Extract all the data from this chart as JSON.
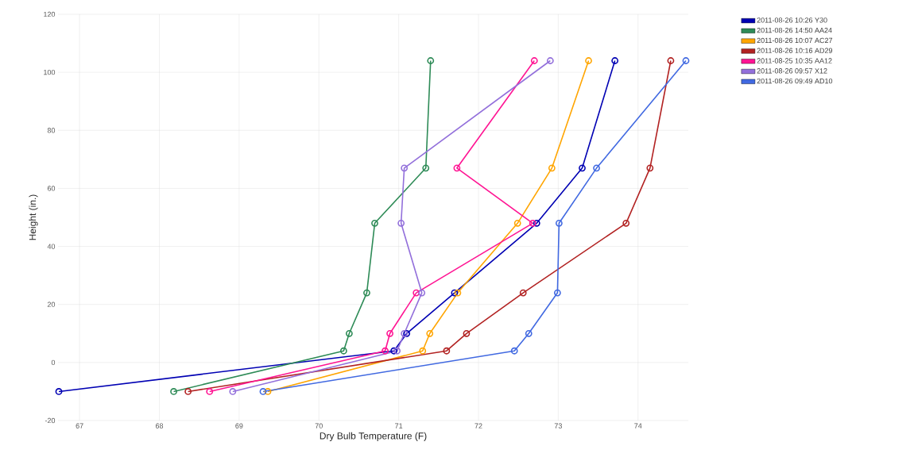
{
  "chart_data": {
    "type": "line",
    "xlabel": "Dry Bulb Temperature (F)",
    "ylabel": "Height (in.)",
    "xlim": [
      66.73,
      74.63
    ],
    "xticks": [
      67,
      68,
      69,
      70,
      71,
      72,
      73,
      74
    ],
    "ylim": [
      -20,
      120
    ],
    "yticks": [
      -20,
      0,
      20,
      40,
      60,
      80,
      100,
      120
    ],
    "grid": true,
    "legend": "top right",
    "marker": "circle",
    "line_style": "solid",
    "series": [
      {
        "name": "2011-08-26 10:26 Y30",
        "color": "#0000b3",
        "x": [
          66.74,
          70.94,
          71.1,
          71.7,
          72.73,
          73.3,
          73.71
        ],
        "values": [
          -10,
          4,
          10,
          24,
          48,
          67,
          104
        ]
      },
      {
        "name": "2011-08-26 14:50 AA24",
        "color": "#2e8b57",
        "x": [
          68.18,
          70.31,
          70.38,
          70.6,
          70.7,
          71.34,
          71.4
        ],
        "values": [
          -10,
          4,
          10,
          24,
          48,
          67,
          104
        ]
      },
      {
        "name": "2011-08-26 10:07 AC27",
        "color": "#ffa500",
        "x": [
          69.36,
          71.3,
          71.39,
          71.74,
          72.49,
          72.92,
          73.38
        ],
        "values": [
          -10,
          4,
          10,
          24,
          48,
          67,
          104
        ]
      },
      {
        "name": "2011-08-26 10:16 AD29",
        "color": "#b22222",
        "x": [
          68.36,
          71.6,
          71.85,
          72.56,
          73.85,
          74.15,
          74.41
        ],
        "values": [
          -10,
          4,
          10,
          24,
          48,
          67,
          104
        ]
      },
      {
        "name": "2011-08-25 10:35 AA12",
        "color": "#ff1493",
        "x": [
          68.63,
          70.83,
          70.89,
          71.22,
          72.68,
          71.73,
          72.7
        ],
        "values": [
          -10,
          4,
          10,
          24,
          48,
          67,
          104
        ]
      },
      {
        "name": "2011-08-26 09:57 X12",
        "color": "#9370db",
        "x": [
          68.92,
          70.98,
          71.07,
          71.29,
          71.03,
          71.07,
          72.9
        ],
        "values": [
          -10,
          4,
          10,
          24,
          48,
          67,
          104
        ]
      },
      {
        "name": "2011-08-26 09:49 AD10",
        "color": "#4169e1",
        "x": [
          69.3,
          72.45,
          72.63,
          72.99,
          73.01,
          73.48,
          74.6
        ],
        "values": [
          -10,
          4,
          10,
          24,
          48,
          67,
          104
        ]
      }
    ]
  }
}
